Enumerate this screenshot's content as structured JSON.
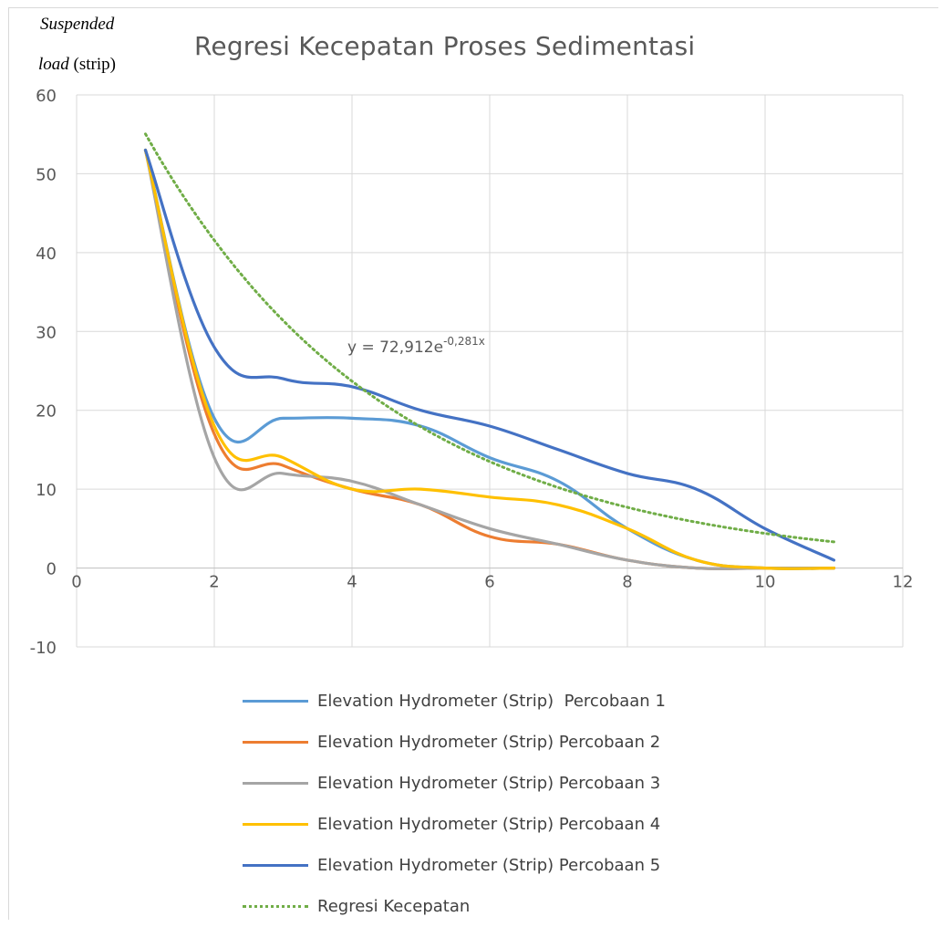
{
  "chart_data": {
    "type": "line",
    "title": "Regresi Kecepatan Proses Sedimentasi",
    "ylabel_line1": "Suspended",
    "ylabel_line2_italic": "load",
    "ylabel_line2_rest": " (strip)",
    "xlim": [
      0,
      12
    ],
    "ylim": [
      -10,
      60
    ],
    "x_ticks": [
      "0",
      "2",
      "4",
      "6",
      "8",
      "10",
      "12"
    ],
    "y_ticks": [
      "-10",
      "0",
      "10",
      "20",
      "30",
      "40",
      "50",
      "60"
    ],
    "x_tick_values": [
      0,
      2,
      4,
      6,
      8,
      10,
      12
    ],
    "y_tick_values": [
      -10,
      0,
      10,
      20,
      30,
      40,
      50,
      60
    ],
    "grid": true,
    "legend_position": "bottom",
    "x": [
      1,
      2,
      3,
      4,
      5,
      6,
      7,
      8,
      9,
      10,
      11
    ],
    "series": [
      {
        "name": "Elevation Hydrometer (Strip)  Percobaan 1",
        "color": "#5b9bd5",
        "values": [
          53,
          19,
          19,
          19,
          18,
          14,
          11,
          5,
          1,
          0,
          0
        ]
      },
      {
        "name": "Elevation Hydrometer (Strip) Percobaan 2",
        "color": "#ed7d31",
        "values": [
          53,
          17,
          13,
          10,
          8,
          4,
          3,
          1,
          0,
          0,
          0
        ]
      },
      {
        "name": "Elevation Hydrometer (Strip) Percobaan 3",
        "color": "#a5a5a5",
        "values": [
          53,
          14,
          12,
          11,
          8,
          5,
          3,
          1,
          0,
          0,
          0
        ]
      },
      {
        "name": "Elevation Hydrometer (Strip) Percobaan 4",
        "color": "#ffc000",
        "values": [
          53,
          18,
          14,
          10,
          10,
          9,
          8,
          5,
          1,
          0,
          0
        ]
      },
      {
        "name": "Elevation Hydrometer (Strip) Percobaan 5",
        "color": "#4472c4",
        "values": [
          53,
          28,
          24,
          23,
          20,
          18,
          15,
          12,
          10,
          5,
          1
        ]
      }
    ],
    "trendline": {
      "name": "Regresi Kecepatan",
      "color": "#70ad47",
      "style": "dotted",
      "type": "exponential",
      "a": 72.912,
      "b": -0.281,
      "x_range": [
        1,
        11
      ],
      "equation_base": "y = 72,912e",
      "equation_exp": "-0,281x"
    }
  }
}
